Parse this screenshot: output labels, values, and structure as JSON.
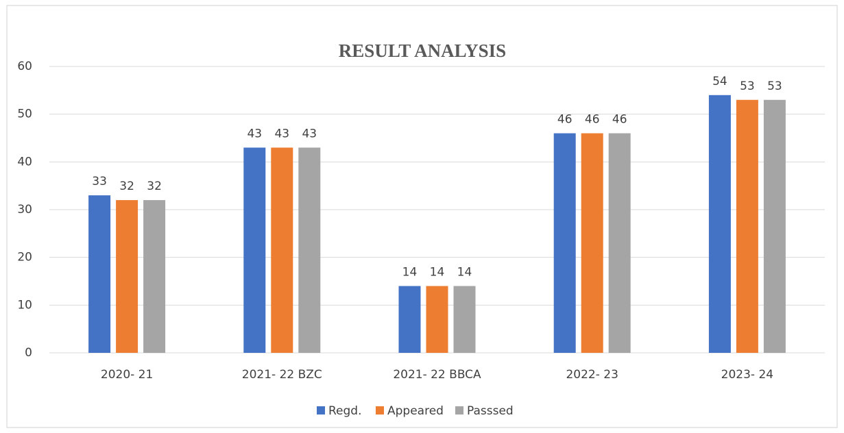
{
  "chart_data": {
    "type": "bar",
    "title": "RESULT ANALYSIS",
    "categories": [
      "2020- 21",
      "2021- 22 BZC",
      "2021- 22 BBCA",
      "2022- 23",
      "2023- 24"
    ],
    "series": [
      {
        "name": "Regd.",
        "color": "#4472c4",
        "values": [
          33,
          43,
          14,
          46,
          54
        ]
      },
      {
        "name": "Appeared",
        "color": "#ed7d31",
        "values": [
          32,
          43,
          14,
          46,
          53
        ]
      },
      {
        "name": "Passsed",
        "color": "#a5a5a5",
        "values": [
          32,
          43,
          14,
          46,
          53
        ]
      }
    ],
    "ylim": [
      0,
      60
    ],
    "yticks": [
      0,
      10,
      20,
      30,
      40,
      50,
      60
    ],
    "grid": true,
    "legend": "bottom"
  }
}
